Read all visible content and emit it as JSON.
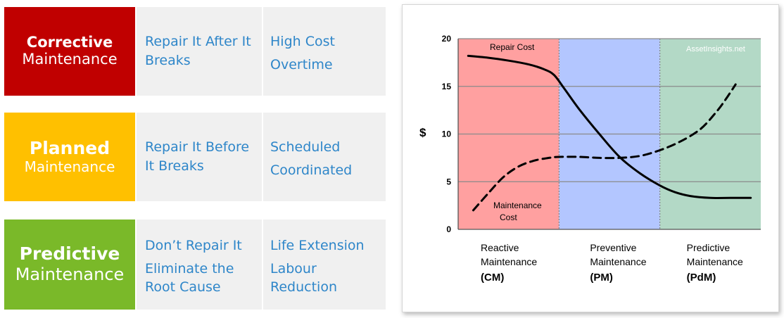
{
  "rows": [
    {
      "category_bold": "Corrective",
      "category_rest": "Maintenance",
      "color": "#c00000",
      "col1": [
        "Repair It After It",
        "Breaks"
      ],
      "col2": [
        "High Cost",
        "Overtime"
      ]
    },
    {
      "category_bold": "Planned",
      "category_rest": "Maintenance",
      "color": "#ffc000",
      "col1": [
        "Repair It Before",
        "It Breaks"
      ],
      "col2": [
        "Scheduled",
        "Coordinated"
      ]
    },
    {
      "category_bold": "Predictive",
      "category_rest": "Maintenance",
      "color": "#7ab929",
      "col1": [
        "Don’t Repair It",
        "Eliminate the",
        "Root Cause"
      ],
      "col2": [
        "Life Extension",
        "Labour",
        "Reduction"
      ]
    }
  ],
  "chart_data": {
    "type": "line",
    "ylabel": "$",
    "ylim": [
      0,
      20
    ],
    "yticks": [
      0,
      5,
      10,
      15,
      20
    ],
    "xlim": [
      0,
      3
    ],
    "grid": true,
    "watermark": "AssetInsights.net",
    "regions": [
      {
        "label_lines": [
          "Reactive",
          "Maintenance"
        ],
        "abbr": "(CM)",
        "x_start": 0,
        "x_end": 1,
        "color": "#ffa0a0"
      },
      {
        "label_lines": [
          "Preventive",
          "Maintenance"
        ],
        "abbr": "(PM)",
        "x_start": 1,
        "x_end": 2,
        "color": "#b3c6ff"
      },
      {
        "label_lines": [
          "Predictive",
          "Maintenance"
        ],
        "abbr": "(PdM)",
        "x_start": 2,
        "x_end": 3,
        "color": "#b3d9c6"
      }
    ],
    "series": [
      {
        "name": "Repair Cost",
        "style": "solid",
        "x": [
          0.1,
          0.3,
          0.5,
          0.7,
          0.85,
          0.95,
          1.05,
          1.2,
          1.4,
          1.6,
          1.8,
          2.0,
          2.15,
          2.3,
          2.5,
          2.7,
          2.9
        ],
        "y": [
          18.2,
          18.0,
          17.7,
          17.3,
          16.8,
          16.2,
          14.8,
          12.6,
          10.0,
          7.6,
          5.9,
          4.6,
          3.9,
          3.5,
          3.3,
          3.3,
          3.3
        ]
      },
      {
        "name": "Maintenance Cost",
        "label_lines": [
          "Maintenance",
          "Cost"
        ],
        "style": "dashed",
        "x": [
          0.15,
          0.3,
          0.45,
          0.6,
          0.75,
          0.9,
          1.0,
          1.2,
          1.4,
          1.6,
          1.8,
          2.0,
          2.2,
          2.4,
          2.55,
          2.65,
          2.75
        ],
        "y": [
          2.0,
          3.8,
          5.5,
          6.6,
          7.2,
          7.5,
          7.6,
          7.6,
          7.5,
          7.5,
          7.7,
          8.3,
          9.2,
          10.5,
          12.2,
          13.6,
          15.2
        ]
      }
    ]
  }
}
